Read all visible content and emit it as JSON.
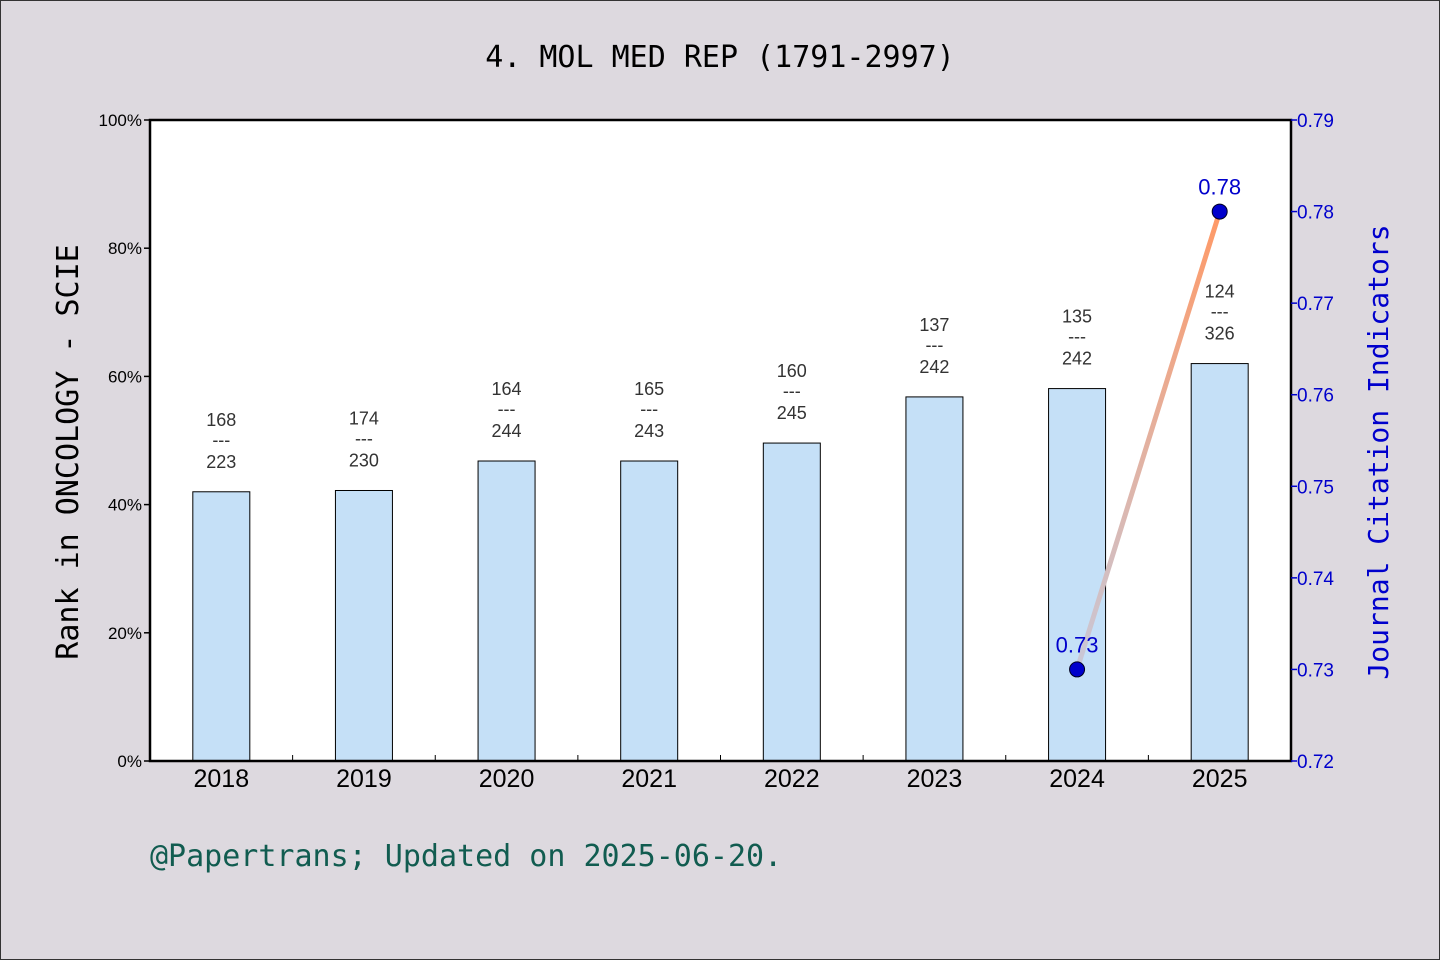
{
  "chart_data": {
    "type": "bar",
    "title": "4. MOL MED REP (1791-2997)",
    "categories": [
      "2018",
      "2019",
      "2020",
      "2021",
      "2022",
      "2023",
      "2024",
      "2025"
    ],
    "ylabel": "Rank in ONCOLOGY - SCIE",
    "ylim": [
      0,
      100
    ],
    "y_ticks": [
      "0%",
      "20%",
      "40%",
      "60%",
      "80%",
      "100%"
    ],
    "bars": [
      {
        "year": "2018",
        "value": 42.0,
        "rank": "168",
        "separator": "---",
        "total": "223"
      },
      {
        "year": "2019",
        "value": 42.2,
        "rank": "174",
        "separator": "---",
        "total": "230"
      },
      {
        "year": "2020",
        "value": 46.8,
        "rank": "164",
        "separator": "---",
        "total": "244"
      },
      {
        "year": "2021",
        "value": 46.8,
        "rank": "165",
        "separator": "---",
        "total": "243"
      },
      {
        "year": "2022",
        "value": 49.6,
        "rank": "160",
        "separator": "---",
        "total": "245"
      },
      {
        "year": "2023",
        "value": 56.8,
        "rank": "137",
        "separator": "---",
        "total": "242"
      },
      {
        "year": "2024",
        "value": 58.1,
        "rank": "135",
        "separator": "---",
        "total": "242"
      },
      {
        "year": "2025",
        "value": 62.0,
        "rank": "124",
        "separator": "---",
        "total": "326"
      }
    ],
    "y2label": "Journal Citation Indicators",
    "y2lim": [
      0.72,
      0.79
    ],
    "y2_ticks": [
      "0.72",
      "0.73",
      "0.74",
      "0.75",
      "0.76",
      "0.77",
      "0.78",
      "0.79"
    ],
    "line_series": {
      "points": [
        {
          "year": "2024",
          "value": 0.73,
          "label": "0.73"
        },
        {
          "year": "2025",
          "value": 0.78,
          "label": "0.78"
        }
      ]
    },
    "colors": {
      "bar_fill": "#c5e0f7",
      "bar_stroke": "#000000",
      "point_fill": "#0000cc",
      "line_start": "#c8c8d8",
      "line_end": "#ff9966",
      "right_axis": "#0000cc",
      "background": "#ddd9df",
      "plot_bg": "#ffffff"
    },
    "legend": "none",
    "grid": false
  },
  "footer": "@Papertrans; Updated on 2025-06-20."
}
